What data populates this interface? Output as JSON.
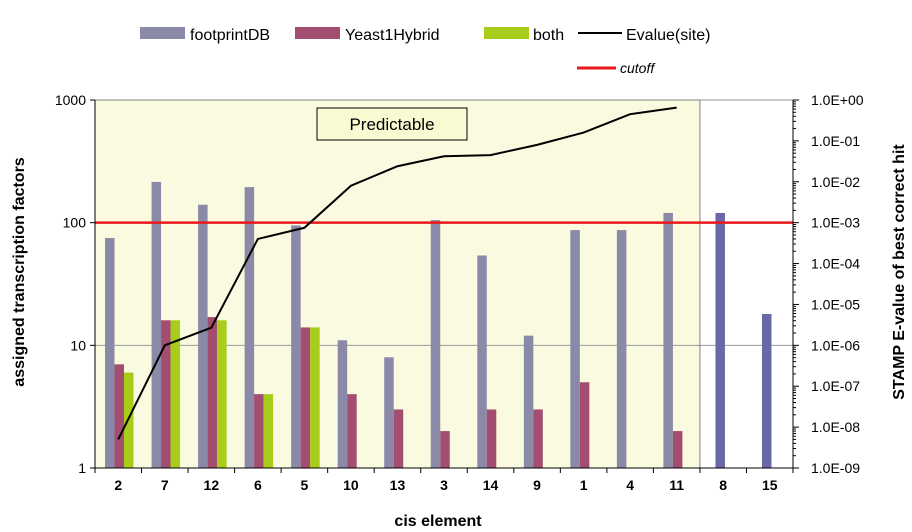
{
  "chart_data": {
    "type": "bar",
    "xlabel": "cis element",
    "ylabel_left": "assigned transcription factors",
    "ylabel_right": "STAMP E-value of best correct hit",
    "categories": [
      "2",
      "7",
      "12",
      "6",
      "5",
      "10",
      "13",
      "3",
      "14",
      "9",
      "1",
      "4",
      "11",
      "8",
      "15"
    ],
    "left_axis": {
      "scale": "log",
      "range": [
        1,
        1000
      ],
      "tick_labels": [
        "1",
        "10",
        "100",
        "1000"
      ]
    },
    "right_axis": {
      "scale": "log",
      "range": [
        1e-09,
        1
      ],
      "tick_labels": [
        "1.0E-09",
        "1.0E-08",
        "1.0E-07",
        "1.0E-06",
        "1.0E-05",
        "1.0E-04",
        "1.0E-03",
        "1.0E-02",
        "1.0E-01",
        "1.0E+00"
      ]
    },
    "series": [
      {
        "name": "footprintDB",
        "type": "bar",
        "axis": "left",
        "color": "#8a8aa8",
        "highlight_color": "#6868a6",
        "values": [
          75,
          215,
          140,
          195,
          95,
          11,
          8,
          105,
          54,
          12,
          87,
          87,
          120,
          120,
          18
        ]
      },
      {
        "name": "Yeast1Hybrid",
        "type": "bar",
        "axis": "left",
        "color": "#a34d70",
        "values": [
          7,
          16,
          17,
          4,
          14,
          4,
          3,
          2,
          3,
          3,
          5,
          null,
          2,
          null,
          null
        ]
      },
      {
        "name": "both",
        "type": "bar",
        "axis": "left",
        "color": "#a8cc1a",
        "values": [
          6,
          16,
          16,
          4,
          14,
          null,
          null,
          null,
          null,
          null,
          null,
          null,
          null,
          null,
          null
        ]
      },
      {
        "name": "Evalue(site)",
        "type": "line",
        "axis": "right",
        "color": "#000000",
        "values": [
          5e-09,
          1e-06,
          2.7e-06,
          0.0004,
          0.00075,
          0.008,
          0.024,
          0.042,
          0.045,
          0.08,
          0.16,
          0.45,
          0.65,
          null,
          null
        ]
      }
    ],
    "cutoff": {
      "name": "cutoff",
      "value": 0.001,
      "axis": "right",
      "color": "#e8191c"
    },
    "annotation": "Predictable",
    "shaded_region_label_categories": [
      "2",
      "11"
    ],
    "shaded_color": "#fafae0",
    "legend_position": "top"
  }
}
